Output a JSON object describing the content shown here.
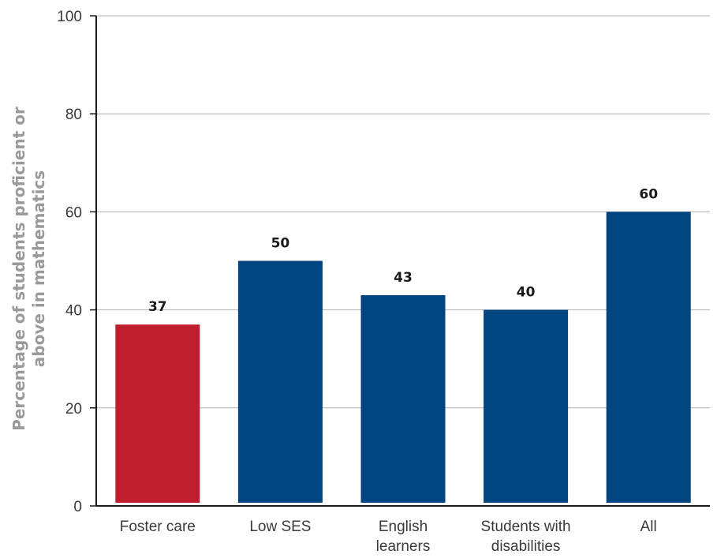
{
  "chart_data": {
    "type": "bar",
    "title": "",
    "xlabel": "",
    "ylabel_lines": [
      "Percentage of students proficient or",
      "above in mathematics"
    ],
    "categories": [
      [
        "Foster care"
      ],
      [
        "Low SES"
      ],
      [
        "English",
        "learners"
      ],
      [
        "Students with",
        "disabilities"
      ],
      [
        "All"
      ]
    ],
    "values": [
      37,
      50,
      43,
      40,
      60
    ],
    "bar_colors": [
      "#be1e2d",
      "#004480",
      "#004480",
      "#004480",
      "#004480"
    ],
    "ylim": [
      0,
      100
    ],
    "yticks": [
      0,
      20,
      40,
      60,
      80,
      100
    ],
    "grid": true,
    "legend": "none"
  }
}
